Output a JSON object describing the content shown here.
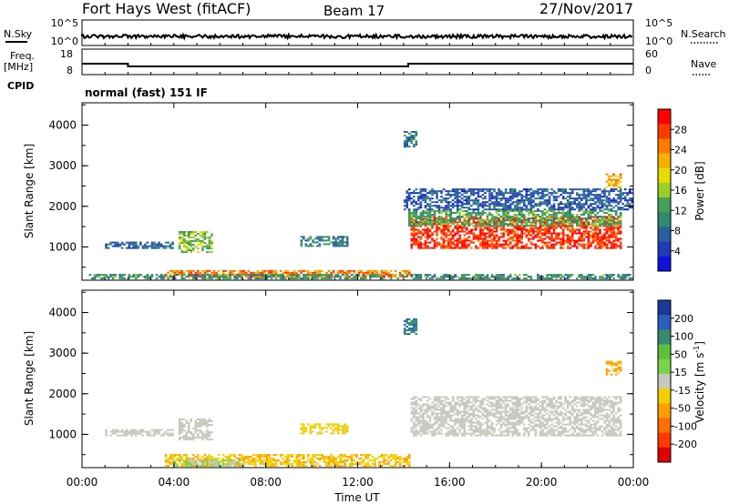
{
  "header": {
    "station": "Fort Hays West (fitACF)",
    "beam": "Beam 17",
    "date": "27/Nov/2017"
  },
  "nsky_panel": {
    "left_label": "N.Sky",
    "left_ticks": [
      "10^5",
      "10^0"
    ],
    "right_label": "N.Search",
    "right_ticks": [
      "10^5",
      "10^0"
    ]
  },
  "freq_panel": {
    "left_label_1": "Freq.",
    "left_label_2": "[MHz]",
    "left_ticks": [
      "18",
      "8"
    ],
    "right_label": "Nave",
    "right_ticks": [
      "60",
      "0"
    ]
  },
  "cpid": {
    "label": "CPID",
    "mode": "normal (fast) 151 IF"
  },
  "power_colorbar": {
    "title": "Power [dB]",
    "ticks": [
      "28",
      "24",
      "20",
      "16",
      "12",
      "8",
      "4"
    ],
    "colors": [
      "#ff0000",
      "#ff3a00",
      "#ff7a00",
      "#f5b000",
      "#e6dc00",
      "#9ccd2b",
      "#46a05a",
      "#2f8a6e",
      "#2a5fa0",
      "#1f3cb4",
      "#1010e0"
    ]
  },
  "velocity_colorbar": {
    "title": "Velocity [m s",
    "title_sup": "-1",
    "title_end": "]",
    "ticks": [
      "200",
      "100",
      "50",
      "15",
      "-15",
      "-50",
      "-100",
      "-200"
    ],
    "colors": [
      "#1a3a9a",
      "#2a5fc0",
      "#3a8a70",
      "#5fbf3a",
      "#7ad44a",
      "#c8c8c0",
      "#f0d000",
      "#ffa000",
      "#ff7000",
      "#ff3a00",
      "#e00000"
    ]
  },
  "chart_data": [
    {
      "type": "heatmap",
      "title": "Power",
      "ylabel": "Slant Range [km]",
      "yticks": [
        "1000",
        "2000",
        "3000",
        "4000"
      ],
      "ylim": [
        180,
        4550
      ],
      "xlim": [
        0,
        24
      ],
      "regions": [
        {
          "t": [
            14.3,
            23.5
          ],
          "r": [
            950,
            1750
          ],
          "v": 28
        },
        {
          "t": [
            14.2,
            23.5
          ],
          "r": [
            1500,
            1900
          ],
          "v": 12
        },
        {
          "t": [
            4.2,
            5.6
          ],
          "r": [
            850,
            1350
          ],
          "v": 14
        },
        {
          "t": [
            1.0,
            4.0
          ],
          "r": [
            950,
            1100
          ],
          "v": 6
        },
        {
          "t": [
            3.6,
            14.2
          ],
          "r": [
            250,
            400
          ],
          "v": 24
        },
        {
          "t": [
            0.3,
            24.0
          ],
          "r": [
            200,
            300
          ],
          "v": 10
        },
        {
          "t": [
            14.0,
            24.0
          ],
          "r": [
            1900,
            2400
          ],
          "v": 5
        },
        {
          "t": [
            22.8,
            23.5
          ],
          "r": [
            2450,
            2800
          ],
          "v": 22
        },
        {
          "t": [
            9.5,
            11.5
          ],
          "r": [
            1000,
            1250
          ],
          "v": 8
        },
        {
          "t": [
            14.0,
            14.5
          ],
          "r": [
            3450,
            3850
          ],
          "v": 8
        }
      ]
    },
    {
      "type": "heatmap",
      "title": "Velocity",
      "ylabel": "Slant Range [km]",
      "yticks": [
        "1000",
        "2000",
        "3000",
        "4000"
      ],
      "ylim": [
        180,
        4550
      ],
      "xlim": [
        0,
        24
      ],
      "regions": [
        {
          "t": [
            14.3,
            23.5
          ],
          "r": [
            950,
            1900
          ],
          "v": 0
        },
        {
          "t": [
            4.2,
            5.6
          ],
          "r": [
            850,
            1350
          ],
          "v": 0
        },
        {
          "t": [
            1.0,
            4.0
          ],
          "r": [
            950,
            1100
          ],
          "v": 0
        },
        {
          "t": [
            3.6,
            14.2
          ],
          "r": [
            200,
            500
          ],
          "v": -60
        },
        {
          "t": [
            4.0,
            7.0
          ],
          "r": [
            200,
            350
          ],
          "v": 20
        },
        {
          "t": [
            22.8,
            23.5
          ],
          "r": [
            2450,
            2800
          ],
          "v": -80
        },
        {
          "t": [
            9.5,
            11.5
          ],
          "r": [
            1000,
            1250
          ],
          "v": -40
        },
        {
          "t": [
            14.0,
            14.5
          ],
          "r": [
            3450,
            3850
          ],
          "v": 150
        }
      ]
    }
  ],
  "xaxis": {
    "label": "Time UT",
    "ticks": [
      "00:00",
      "04:00",
      "08:00",
      "12:00",
      "16:00",
      "20:00",
      "00:00"
    ]
  }
}
